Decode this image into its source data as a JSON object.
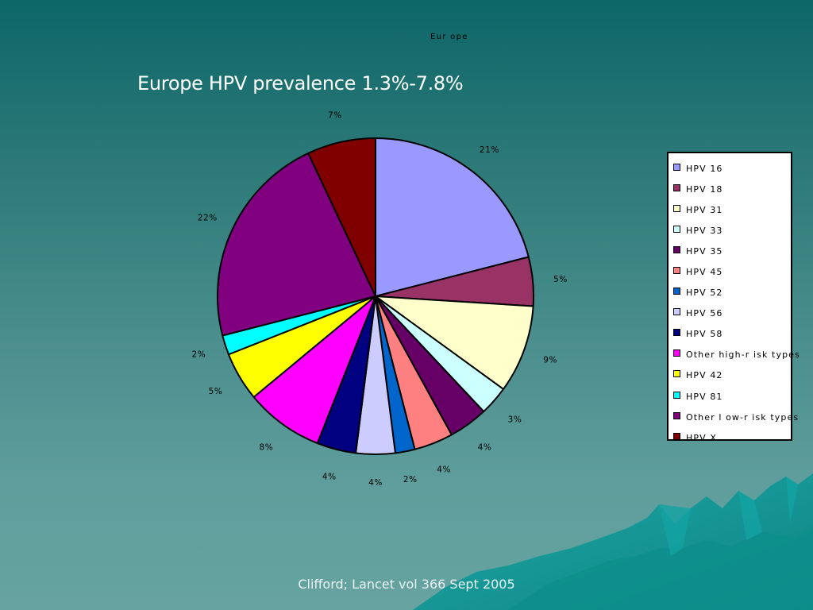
{
  "slide": {
    "title": "Europe HPV prevalence 1.3%-7.8%",
    "footer": "Clifford; Lancet vol 366 Sept 2005"
  },
  "chart_data": {
    "type": "pie",
    "title": "Eur ope",
    "legend_position": "right",
    "slices": [
      {
        "name": "HPV 16",
        "value": 21,
        "label": "21%",
        "color": "#9999ff"
      },
      {
        "name": "HPV 18",
        "value": 5,
        "label": "5%",
        "color": "#993366"
      },
      {
        "name": "HPV 31",
        "value": 9,
        "label": "9%",
        "color": "#ffffcc"
      },
      {
        "name": "HPV 33",
        "value": 3,
        "label": "3%",
        "color": "#ccffff"
      },
      {
        "name": "HPV 35",
        "value": 4,
        "label": "4%",
        "color": "#660066"
      },
      {
        "name": "HPV 45",
        "value": 4,
        "label": "4%",
        "color": "#ff8080"
      },
      {
        "name": "HPV 52",
        "value": 2,
        "label": "2%",
        "color": "#0066cc"
      },
      {
        "name": "HPV 56",
        "value": 4,
        "label": "4%",
        "color": "#ccccff"
      },
      {
        "name": "HPV 58",
        "value": 4,
        "label": "4%",
        "color": "#000080"
      },
      {
        "name": "Other high-r isk types",
        "value": 8,
        "label": "8%",
        "color": "#ff00ff"
      },
      {
        "name": "HPV 42",
        "value": 5,
        "label": "5%",
        "color": "#ffff00"
      },
      {
        "name": "HPV 81",
        "value": 2,
        "label": "2%",
        "color": "#00ffff"
      },
      {
        "name": "Other l ow-r isk types",
        "value": 22,
        "label": "22%",
        "color": "#800080"
      },
      {
        "name": "HPV X",
        "value": 7,
        "label": "7%",
        "color": "#800000"
      }
    ]
  }
}
